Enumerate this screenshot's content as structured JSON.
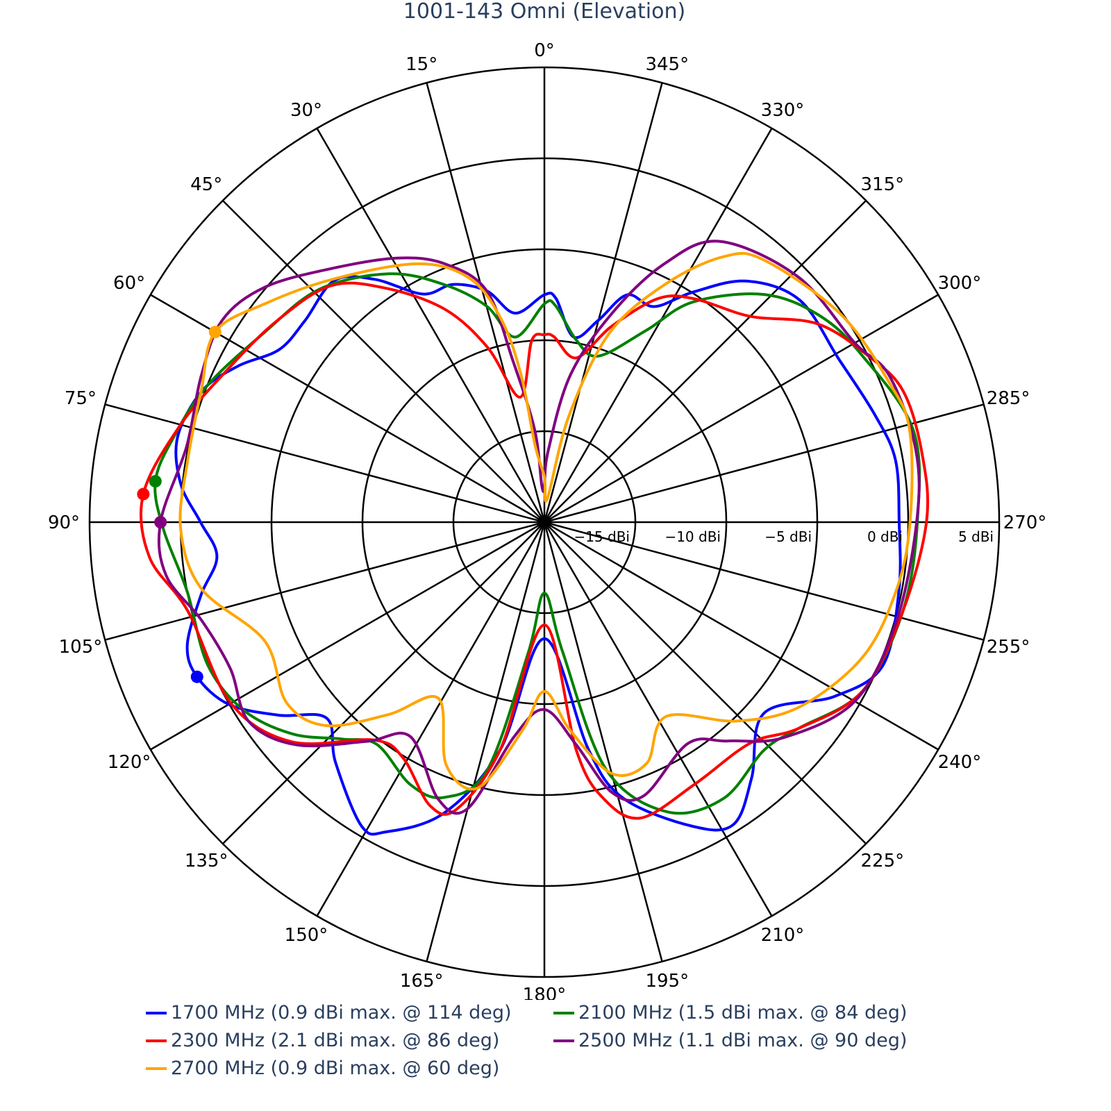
{
  "chart_data": {
    "type": "polar",
    "title": "1001-143 Omni (Elevation)",
    "angular_axis": {
      "direction": "counterclockwise",
      "zero_at": "top",
      "tick_step_deg": 15,
      "tick_labels": [
        "0°",
        "15°",
        "30°",
        "45°",
        "60°",
        "75°",
        "90°",
        "105°",
        "120°",
        "135°",
        "150°",
        "165°",
        "180°",
        "195°",
        "210°",
        "225°",
        "240°",
        "255°",
        "270°",
        "285°",
        "300°",
        "315°",
        "330°",
        "345°"
      ]
    },
    "radial_axis": {
      "range": [
        -20,
        5
      ],
      "unit": "dBi",
      "ticks": [
        -15,
        -10,
        -5,
        0,
        5
      ],
      "tick_labels": [
        "−15 dBi",
        "−10 dBi",
        "−5 dBi",
        "0 dBi",
        "5 dBi"
      ],
      "angle_deg": 270
    },
    "grid": true,
    "legend_placement": "bottom",
    "series": [
      {
        "name": "1700 MHz (0.9 dBi max. @ 114 deg)",
        "color": "#0000ff",
        "theta": [
          0,
          8,
          14,
          21,
          28,
          35,
          41,
          50,
          57,
          63,
          69,
          77,
          84,
          90,
          96,
          102,
          109,
          114,
          120,
          126,
          132,
          139,
          149,
          153,
          161,
          169,
          180,
          191,
          196,
          206,
          212,
          219,
          229,
          239,
          247,
          259,
          270,
          280,
          288,
          299,
          311,
          320,
          327,
          333,
          340,
          345,
          351,
          357
        ],
        "r": [
          -7.5,
          -8.4,
          -6.9,
          -6.0,
          -5.8,
          -3.7,
          -2.4,
          -2.8,
          -2.6,
          -1.1,
          0.15,
          0.7,
          0.1,
          -1.1,
          -1.9,
          -0.7,
          0.76,
          0.9,
          0.03,
          -1.95,
          -3.9,
          -2.5,
          -0.5,
          -0.9,
          -3.1,
          -7.25,
          -13.6,
          -7.25,
          -4.2,
          -1.4,
          -0.4,
          -1.9,
          -4.0,
          -1.4,
          0.2,
          -0.15,
          -0.5,
          -0.4,
          -0.9,
          -1.5,
          -1.4,
          -2.7,
          -4.9,
          -6.7,
          -6.7,
          -8.5,
          -9.7,
          -7.7
        ],
        "max": {
          "theta": 114,
          "r": 0.9
        }
      },
      {
        "name": "2100 MHz (1.5 dBi max. @ 84 deg)",
        "color": "#008000",
        "theta": [
          0,
          9,
          15,
          23,
          32,
          44,
          56,
          68,
          77,
          84,
          91,
          101,
          113,
          122,
          130,
          137,
          143,
          153,
          160,
          167,
          173,
          180,
          188,
          194,
          203,
          213,
          224,
          231,
          242,
          256,
          270,
          284,
          298,
          307,
          316,
          326,
          332,
          342,
          350,
          357
        ],
        "r": [
          -8.0,
          -9.7,
          -7.7,
          -5.8,
          -3.9,
          -2.2,
          -1.4,
          0,
          0.9,
          1.5,
          0.95,
          0,
          0.1,
          -0.5,
          -1.9,
          -3.7,
          -4.7,
          -3.8,
          -3.9,
          -6,
          -12.8,
          -16.1,
          -12.8,
          -6,
          -2.7,
          -1.9,
          -2.6,
          -2,
          -0.2,
          0.3,
          0.5,
          0.9,
          -0.3,
          -1.1,
          -2.6,
          -5.4,
          -8.05,
          -10.4,
          -9.85,
          -8.1
        ],
        "max": {
          "theta": 84,
          "r": 1.5
        }
      },
      {
        "name": "2300 MHz (2.1 dBi max. @ 86 deg)",
        "color": "#ff0000",
        "theta": [
          0,
          4,
          11,
          18,
          25,
          34,
          42,
          53,
          64,
          75,
          86,
          95,
          104,
          120,
          131,
          142,
          149,
          158,
          163,
          169,
          180,
          188,
          192,
          198,
          210,
          223,
          231,
          242,
          256,
          270,
          280,
          290,
          297,
          306,
          315,
          326,
          333,
          341,
          349,
          357
        ],
        "r": [
          -9.7,
          -10,
          -13,
          -9.9,
          -7.1,
          -4.5,
          -2.5,
          -1.6,
          -0.7,
          0.7,
          2.1,
          1.8,
          0.2,
          -0.1,
          -1.6,
          -4.8,
          -4.9,
          -3.2,
          -3.5,
          -7.25,
          -14.35,
          -7.3,
          -4.5,
          -2.9,
          -3.4,
          -3.4,
          -2,
          -0.2,
          0.3,
          1.0,
          1.1,
          1.0,
          0.04,
          -1.45,
          -4,
          -5.2,
          -6.2,
          -8.6,
          -10.8,
          -9.8
        ],
        "max": {
          "theta": 86,
          "r": 2.1
        }
      },
      {
        "name": "2500 MHz (1.1 dBi max. @ 90 deg)",
        "color": "#800080",
        "theta": [
          0,
          4,
          6,
          11,
          14,
          21,
          29,
          40,
          50,
          58,
          67,
          78,
          90,
          98,
          106,
          115,
          124,
          132,
          141,
          148,
          159,
          165,
          172,
          180,
          188,
          194,
          200,
          213,
          220,
          228,
          240,
          254,
          270,
          281,
          293,
          300,
          314,
          328,
          335,
          342,
          350,
          357
        ],
        "r": [
          -18,
          -18,
          -14.9,
          -11,
          -6.9,
          -4.8,
          -3.4,
          -1.8,
          0.08,
          0.9,
          0.5,
          0.1,
          1.1,
          1.0,
          -0.4,
          -0.95,
          -0.4,
          -1.7,
          -4.5,
          -6.1,
          -3.7,
          -3.7,
          -8.1,
          -9.7,
          -7.7,
          -4.7,
          -4,
          -5.5,
          -4.3,
          -2.3,
          -0.3,
          0.1,
          0.46,
          0.8,
          0.6,
          -0.3,
          -0.6,
          -1.8,
          -4.3,
          -7.9,
          -11.8,
          -16.1
        ],
        "max": {
          "theta": 90,
          "r": 1.1
        }
      },
      {
        "name": "2700 MHz (0.9 dBi max. @ 60 deg)",
        "color": "#ffa500",
        "theta": [
          0,
          7,
          9,
          12,
          17,
          26,
          41,
          52,
          60,
          69,
          80,
          91,
          101,
          113,
          125,
          133,
          141,
          149,
          158,
          166,
          174,
          180,
          187,
          195,
          203,
          212,
          224,
          234,
          247,
          259,
          270,
          284,
          292,
          305,
          320,
          326,
          333,
          341,
          347,
          353
        ],
        "r": [
          -17.5,
          -15.7,
          -11.8,
          -8.6,
          -6,
          -4.2,
          -2.3,
          -0.5,
          0.9,
          0.2,
          -0.1,
          0,
          -0.8,
          -3.3,
          -2.7,
          -3.6,
          -6.4,
          -8.7,
          -5.6,
          -4.95,
          -8.5,
          -10.7,
          -8.5,
          -5.7,
          -5.6,
          -7.4,
          -4.8,
          -2.7,
          -1,
          -0.3,
          0.1,
          0.7,
          0.45,
          -0.1,
          -1.2,
          -2.4,
          -5.3,
          -9,
          -14,
          -18.7
        ],
        "max": {
          "theta": 60,
          "r": 0.9
        }
      }
    ]
  }
}
